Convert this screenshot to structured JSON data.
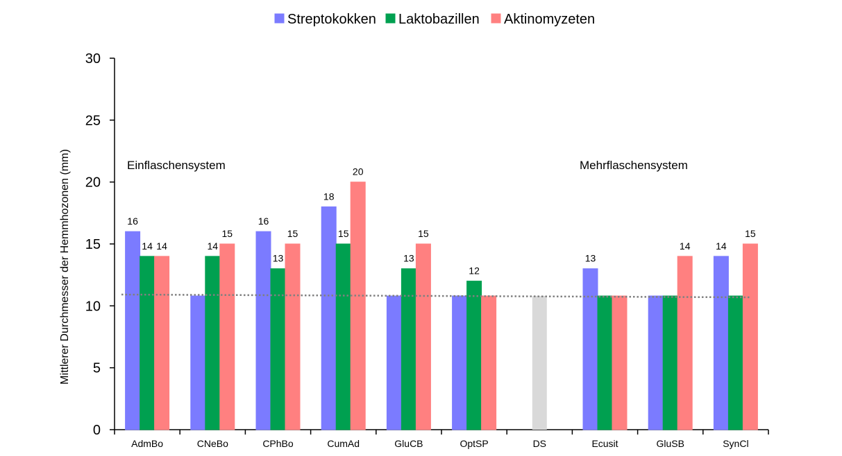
{
  "chart_data": {
    "type": "bar",
    "ylabel": "Mittlerer Durchmesser der Hemmhozonen (mm)",
    "xlabel": "",
    "ylim": [
      0,
      30
    ],
    "yticks": [
      0,
      5,
      10,
      15,
      20,
      25,
      30
    ],
    "legend_position": "top-center",
    "grid": false,
    "baseline_value": 10.8,
    "categories": [
      "AdmBo",
      "CNeBo",
      "CPhBo",
      "CumAd",
      "GluCB",
      "OptSP",
      "DS",
      "Ecusit",
      "GluSB",
      "SynCl"
    ],
    "series": [
      {
        "name": "Streptokokken",
        "color": "#7b7bff",
        "values": [
          16,
          10.8,
          16,
          18,
          10.8,
          10.8,
          null,
          13,
          10.8,
          14
        ],
        "labels": [
          "16",
          "",
          "16",
          "18",
          "",
          "",
          "",
          "13",
          "",
          "14"
        ]
      },
      {
        "name": "Laktobazillen",
        "color": "#00a050",
        "values": [
          14,
          14,
          13,
          15,
          13,
          12,
          null,
          10.8,
          10.8,
          10.8
        ],
        "labels": [
          "14",
          "14",
          "13",
          "15",
          "13",
          "12",
          "",
          "",
          "",
          ""
        ]
      },
      {
        "name": "Aktinomyzeten",
        "color": "#ff8080",
        "values": [
          14,
          15,
          15,
          20,
          15,
          10.8,
          null,
          10.8,
          14,
          15
        ],
        "labels": [
          "14",
          "15",
          "15",
          "20",
          "15",
          "",
          "",
          "",
          "14",
          "15"
        ]
      }
    ],
    "extra_bars": [
      {
        "category": "DS",
        "value": 10.8,
        "color": "#d9d9d9"
      }
    ],
    "annotations": [
      "Einflaschensystem",
      "Mehrflaschensystem"
    ],
    "reference_line": {
      "value": 10.8,
      "style": "dotted",
      "color": "#808080"
    }
  }
}
